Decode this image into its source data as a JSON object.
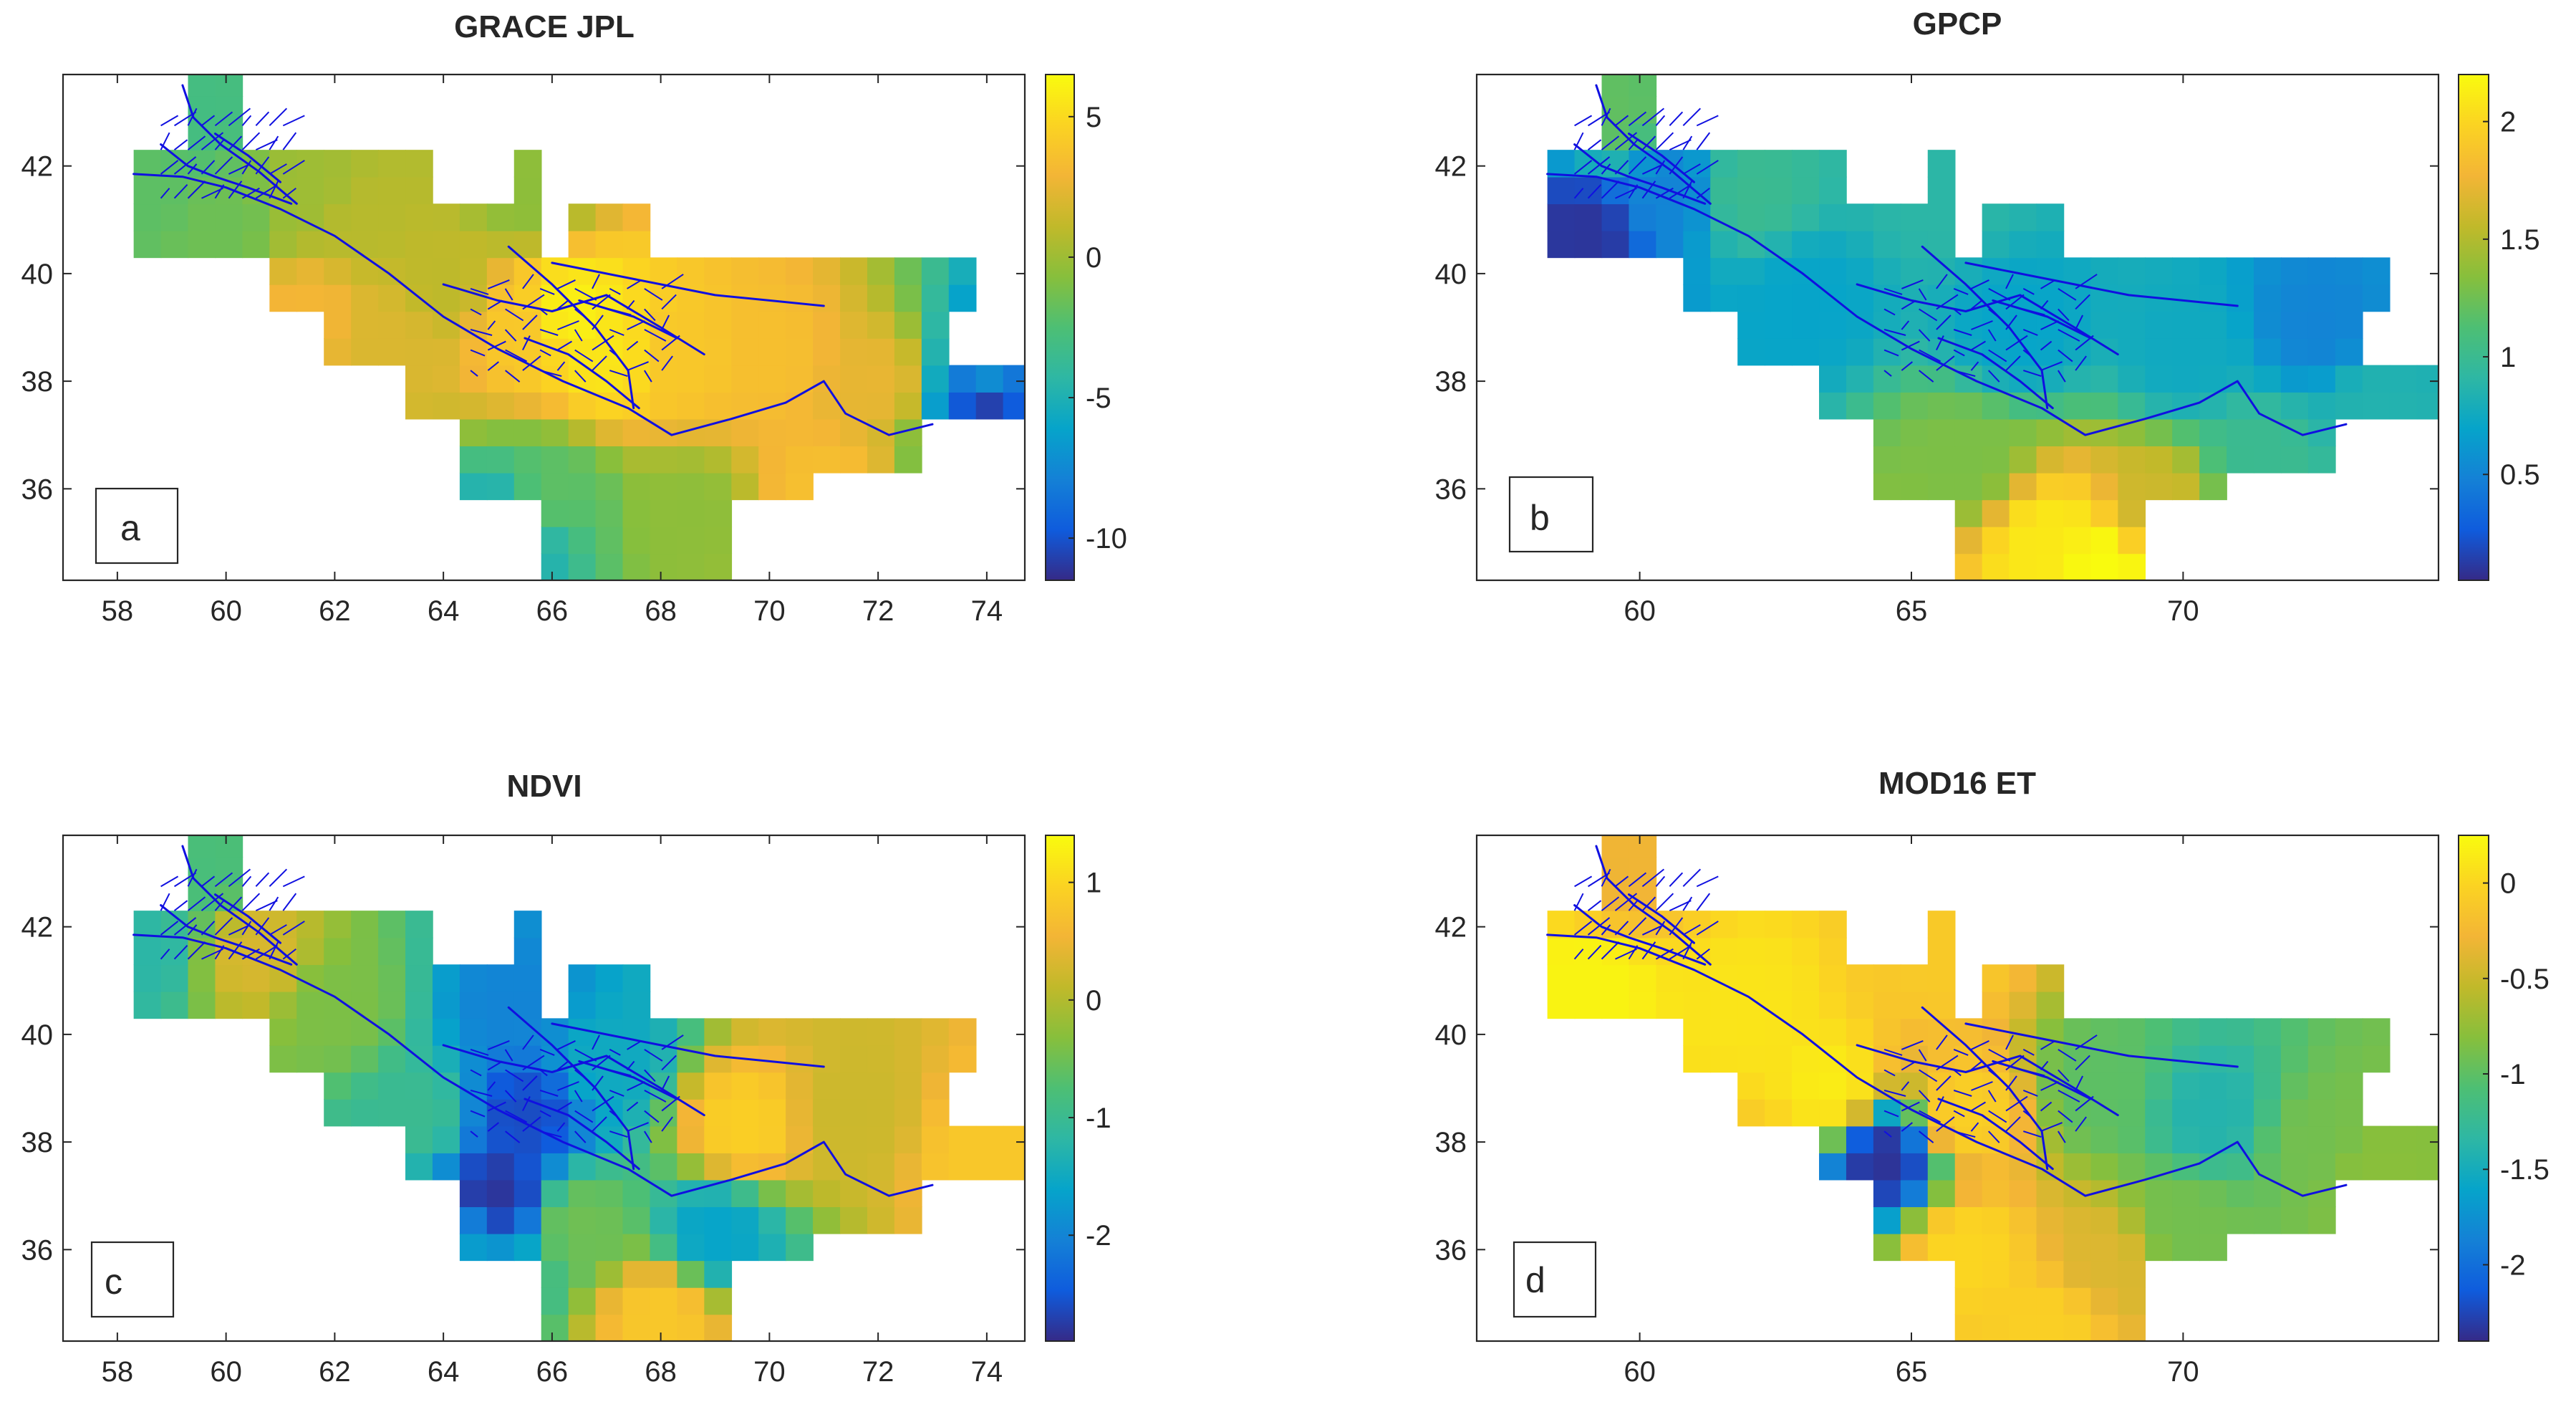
{
  "chart_data": [
    {
      "id": "a",
      "type": "heatmap",
      "title": "GRACE JPL",
      "panel_label": "a",
      "xlim": [
        57,
        74.7
      ],
      "ylim": [
        34.3,
        43.7
      ],
      "xticks": [
        58,
        60,
        62,
        64,
        66,
        68,
        70,
        72,
        74
      ],
      "yticks": [
        36,
        38,
        40,
        42
      ],
      "colorbar": {
        "range": [
          -11.5,
          6.5
        ],
        "ticks": [
          5,
          0,
          -5,
          -10
        ],
        "tick_labels": [
          "5",
          "0",
          "-5",
          "-10"
        ]
      },
      "cells": [
        {
          "lon": 59.5,
          "lat": 43.0,
          "value": -3.0
        },
        {
          "lon": 58.5,
          "lat": 41.5,
          "value": -2.0
        },
        {
          "lon": 60.0,
          "lat": 41.0,
          "value": -1.5
        },
        {
          "lon": 61.5,
          "lat": 41.5,
          "value": 0.0
        },
        {
          "lon": 62.5,
          "lat": 41.0,
          "value": 0.8
        },
        {
          "lon": 61.5,
          "lat": 39.3,
          "value": 3.0
        },
        {
          "lon": 63.0,
          "lat": 38.8,
          "value": 2.0
        },
        {
          "lon": 64.0,
          "lat": 39.8,
          "value": 1.0
        },
        {
          "lon": 65.5,
          "lat": 41.5,
          "value": -0.5
        },
        {
          "lon": 65.5,
          "lat": 39.0,
          "value": 4.0
        },
        {
          "lon": 66.3,
          "lat": 39.3,
          "value": 6.0
        },
        {
          "lon": 67.0,
          "lat": 38.5,
          "value": 5.5
        },
        {
          "lon": 68.3,
          "lat": 38.5,
          "value": 4.0
        },
        {
          "lon": 70.0,
          "lat": 38.5,
          "value": 3.5
        },
        {
          "lon": 72.0,
          "lat": 38.0,
          "value": 2.5
        },
        {
          "lon": 74.0,
          "lat": 37.7,
          "value": -11.0
        },
        {
          "lon": 74.0,
          "lat": 38.0,
          "value": -7.0
        },
        {
          "lon": 66.0,
          "lat": 35.9,
          "value": -2.0
        },
        {
          "lon": 65.3,
          "lat": 35.3,
          "value": -6.0
        },
        {
          "lon": 68.5,
          "lat": 35.5,
          "value": -0.5
        },
        {
          "lon": 71.0,
          "lat": 36.0,
          "value": 3.5
        }
      ]
    },
    {
      "id": "b",
      "type": "heatmap",
      "title": "GPCP",
      "panel_label": "b",
      "xlim": [
        57,
        74.7
      ],
      "ylim": [
        34.3,
        43.7
      ],
      "xticks": [
        60,
        65,
        70
      ],
      "yticks": [
        36,
        38,
        40,
        42
      ],
      "colorbar": {
        "range": [
          0.05,
          2.2
        ],
        "ticks": [
          2,
          1.5,
          1,
          0.5
        ],
        "tick_labels": [
          "2",
          "1.5",
          "1",
          "0.5"
        ]
      },
      "cells": [
        {
          "lon": 59.5,
          "lat": 43.0,
          "value": 1.2
        },
        {
          "lon": 59.0,
          "lat": 40.8,
          "value": 0.1
        },
        {
          "lon": 60.5,
          "lat": 41.5,
          "value": 0.5
        },
        {
          "lon": 62.0,
          "lat": 41.5,
          "value": 1.0
        },
        {
          "lon": 63.0,
          "lat": 39.5,
          "value": 0.7
        },
        {
          "lon": 65.5,
          "lat": 41.5,
          "value": 0.9
        },
        {
          "lon": 67.0,
          "lat": 39.0,
          "value": 0.7
        },
        {
          "lon": 70.0,
          "lat": 38.5,
          "value": 0.75
        },
        {
          "lon": 72.5,
          "lat": 39.0,
          "value": 0.5
        },
        {
          "lon": 73.5,
          "lat": 37.5,
          "value": 0.85
        },
        {
          "lon": 66.0,
          "lat": 36.5,
          "value": 1.3
        },
        {
          "lon": 67.5,
          "lat": 35.0,
          "value": 2.1
        },
        {
          "lon": 68.5,
          "lat": 34.6,
          "value": 2.2
        },
        {
          "lon": 69.5,
          "lat": 35.7,
          "value": 1.6
        },
        {
          "lon": 71.5,
          "lat": 36.5,
          "value": 1.0
        }
      ]
    },
    {
      "id": "c",
      "type": "heatmap",
      "title": "NDVI",
      "panel_label": "c",
      "xlim": [
        57,
        74.7
      ],
      "ylim": [
        34.3,
        43.7
      ],
      "xticks": [
        58,
        60,
        62,
        64,
        66,
        68,
        70,
        72,
        74
      ],
      "yticks": [
        36,
        38,
        40,
        42
      ],
      "colorbar": {
        "range": [
          -2.9,
          1.4
        ],
        "ticks": [
          1,
          0,
          -1,
          -2
        ],
        "tick_labels": [
          "1",
          "0",
          "-1",
          "-2"
        ]
      },
      "cells": [
        {
          "lon": 59.5,
          "lat": 43.0,
          "value": -0.8
        },
        {
          "lon": 58.5,
          "lat": 41.5,
          "value": -1.2
        },
        {
          "lon": 60.5,
          "lat": 41.5,
          "value": 0.3
        },
        {
          "lon": 62.0,
          "lat": 40.5,
          "value": -0.4
        },
        {
          "lon": 63.5,
          "lat": 38.5,
          "value": -1.0
        },
        {
          "lon": 65.3,
          "lat": 40.5,
          "value": -2.0
        },
        {
          "lon": 65.5,
          "lat": 38.5,
          "value": -2.6
        },
        {
          "lon": 65.0,
          "lat": 37.0,
          "value": -2.8
        },
        {
          "lon": 67.0,
          "lat": 39.5,
          "value": -1.5
        },
        {
          "lon": 69.5,
          "lat": 38.3,
          "value": 0.9
        },
        {
          "lon": 71.5,
          "lat": 38.5,
          "value": 0.2
        },
        {
          "lon": 74.0,
          "lat": 37.8,
          "value": 0.8
        },
        {
          "lon": 66.5,
          "lat": 36.5,
          "value": -0.5
        },
        {
          "lon": 69.0,
          "lat": 36.3,
          "value": -1.6
        },
        {
          "lon": 68.0,
          "lat": 34.8,
          "value": 0.8
        },
        {
          "lon": 64.5,
          "lat": 36.0,
          "value": -1.7
        }
      ]
    },
    {
      "id": "d",
      "type": "heatmap",
      "title": "MOD16 ET",
      "panel_label": "d",
      "xlim": [
        57,
        74.7
      ],
      "ylim": [
        34.3,
        43.7
      ],
      "xticks": [
        60,
        65,
        70
      ],
      "yticks": [
        36,
        38,
        40,
        42
      ],
      "colorbar": {
        "range": [
          -2.4,
          0.25
        ],
        "ticks": [
          0,
          -0.5,
          -1,
          -1.5,
          -2
        ],
        "tick_labels": [
          "0",
          "-0.5",
          "-1",
          "-1.5",
          "-2"
        ]
      },
      "cells": [
        {
          "lon": 59.5,
          "lat": 43.0,
          "value": -0.3
        },
        {
          "lon": 59.0,
          "lat": 41.0,
          "value": 0.2
        },
        {
          "lon": 62.0,
          "lat": 40.5,
          "value": 0.1
        },
        {
          "lon": 63.5,
          "lat": 39.0,
          "value": 0.15
        },
        {
          "lon": 64.5,
          "lat": 37.7,
          "value": -2.35
        },
        {
          "lon": 65.5,
          "lat": 41.5,
          "value": -0.1
        },
        {
          "lon": 66.0,
          "lat": 38.5,
          "value": -0.05
        },
        {
          "lon": 68.5,
          "lat": 39.0,
          "value": -1.0
        },
        {
          "lon": 70.5,
          "lat": 38.5,
          "value": -1.4
        },
        {
          "lon": 72.5,
          "lat": 38.0,
          "value": -0.9
        },
        {
          "lon": 73.5,
          "lat": 37.5,
          "value": -0.8
        },
        {
          "lon": 66.0,
          "lat": 36.0,
          "value": 0.0
        },
        {
          "lon": 68.5,
          "lat": 35.8,
          "value": -0.4
        },
        {
          "lon": 70.0,
          "lat": 36.5,
          "value": -0.9
        },
        {
          "lon": 67.5,
          "lat": 34.7,
          "value": -0.05
        }
      ]
    }
  ]
}
